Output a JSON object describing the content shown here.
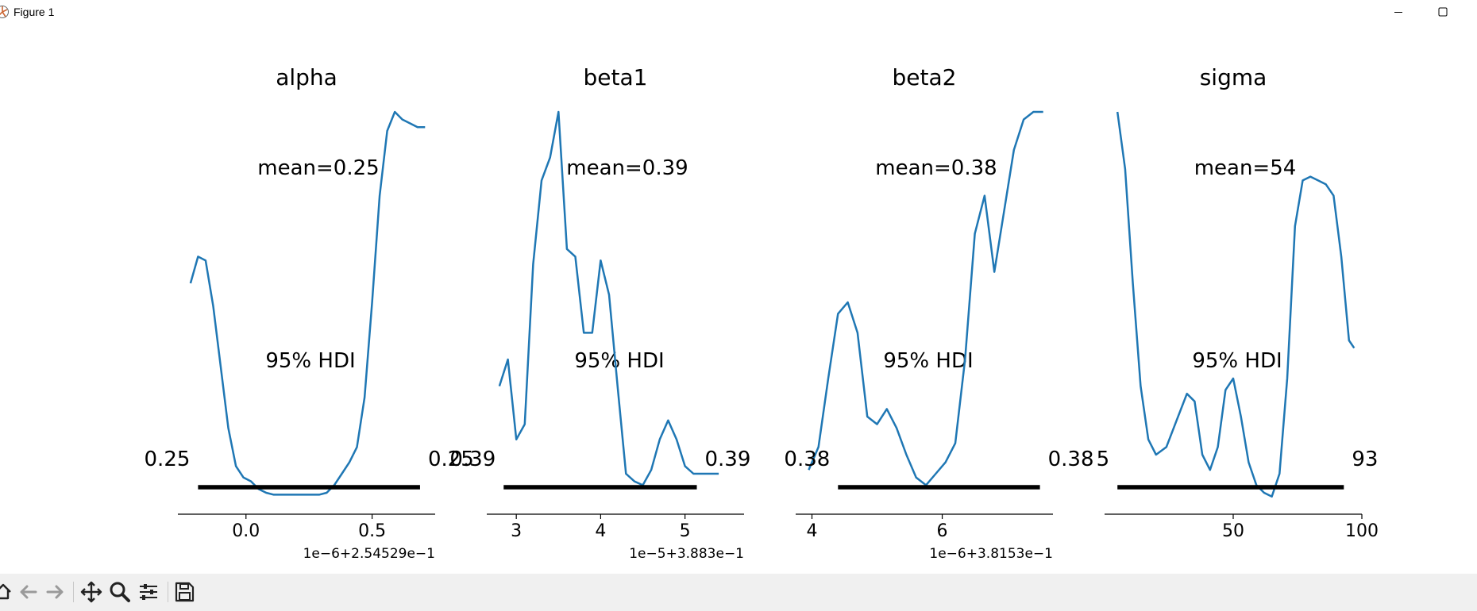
{
  "window": {
    "title": "Figure 1",
    "controls": [
      "minimize",
      "maximize"
    ]
  },
  "toolbar": {
    "buttons": [
      "home-icon",
      "back-icon",
      "forward-icon",
      "pan-icon",
      "zoom-icon",
      "configure-subplots-icon",
      "save-icon"
    ]
  },
  "chart_data": [
    {
      "type": "line",
      "title": "alpha",
      "mean_label": "mean=0.25",
      "hdi_label": "95% HDI",
      "hdi_low_label": "0.25",
      "hdi_high_label": "0.25",
      "hdi": [
        -0.19,
        0.69
      ],
      "xlim": [
        -0.27,
        0.75
      ],
      "xticks": [
        0.0,
        0.5
      ],
      "xtick_labels": [
        "0.0",
        "0.5"
      ],
      "offset_label": "1e−6+2.54529e−1",
      "x": [
        -0.22,
        -0.19,
        -0.16,
        -0.13,
        -0.1,
        -0.07,
        -0.04,
        -0.01,
        0.02,
        0.05,
        0.08,
        0.11,
        0.14,
        0.17,
        0.2,
        0.23,
        0.26,
        0.29,
        0.32,
        0.35,
        0.38,
        0.41,
        0.44,
        0.47,
        0.5,
        0.53,
        0.56,
        0.59,
        0.62,
        0.65,
        0.68,
        0.71
      ],
      "y": [
        0.55,
        0.62,
        0.61,
        0.49,
        0.33,
        0.17,
        0.07,
        0.04,
        0.03,
        0.01,
        0.0,
        -0.005,
        -0.005,
        -0.005,
        -0.005,
        -0.005,
        -0.005,
        -0.005,
        0.0,
        0.02,
        0.05,
        0.08,
        0.12,
        0.25,
        0.5,
        0.78,
        0.95,
        1.0,
        0.98,
        0.97,
        0.96,
        0.96
      ]
    },
    {
      "type": "line",
      "title": "beta1",
      "mean_label": "mean=0.39",
      "hdi_label": "95% HDI",
      "hdi_low_label": "0.39",
      "hdi_high_label": "0.39",
      "hdi": [
        2.85,
        5.14
      ],
      "xlim": [
        2.65,
        5.7
      ],
      "xticks": [
        3,
        4,
        5
      ],
      "xtick_labels": [
        "3",
        "4",
        "5"
      ],
      "offset_label": "1e−5+3.883e−1",
      "x": [
        2.8,
        2.9,
        3.0,
        3.1,
        3.2,
        3.3,
        3.4,
        3.5,
        3.6,
        3.7,
        3.8,
        3.9,
        4.0,
        4.1,
        4.2,
        4.3,
        4.4,
        4.5,
        4.6,
        4.7,
        4.8,
        4.9,
        5.0,
        5.1,
        5.2,
        5.3,
        5.4
      ],
      "y": [
        0.28,
        0.35,
        0.14,
        0.18,
        0.6,
        0.82,
        0.88,
        1.0,
        0.64,
        0.62,
        0.42,
        0.42,
        0.61,
        0.52,
        0.28,
        0.05,
        0.03,
        0.02,
        0.06,
        0.14,
        0.19,
        0.14,
        0.07,
        0.05,
        0.05,
        0.05,
        0.05
      ]
    },
    {
      "type": "line",
      "title": "beta2",
      "mean_label": "mean=0.38",
      "hdi_label": "95% HDI",
      "hdi_low_label": "0.38",
      "hdi_high_label": "0.38",
      "hdi": [
        4.4,
        7.5
      ],
      "xlim": [
        3.75,
        7.7
      ],
      "xticks": [
        4,
        6
      ],
      "xtick_labels": [
        "4",
        "6"
      ],
      "offset_label": "1e−6+3.8153e−1",
      "x": [
        3.95,
        4.1,
        4.25,
        4.4,
        4.55,
        4.7,
        4.85,
        5.0,
        5.15,
        5.3,
        5.45,
        5.6,
        5.75,
        5.9,
        6.05,
        6.2,
        6.35,
        6.5,
        6.65,
        6.8,
        6.95,
        7.1,
        7.25,
        7.4,
        7.55
      ],
      "y": [
        0.06,
        0.12,
        0.3,
        0.47,
        0.5,
        0.42,
        0.2,
        0.18,
        0.22,
        0.17,
        0.1,
        0.04,
        0.02,
        0.05,
        0.08,
        0.13,
        0.35,
        0.68,
        0.78,
        0.58,
        0.74,
        0.9,
        0.98,
        1.0,
        1.0
      ]
    },
    {
      "type": "line",
      "title": "sigma",
      "mean_label": "mean=54",
      "hdi_label": "95% HDI",
      "hdi_low_label": "5",
      "hdi_high_label": "93",
      "hdi": [
        5,
        93
      ],
      "xlim": [
        0,
        100
      ],
      "xticks": [
        50,
        100
      ],
      "xtick_labels": [
        "50",
        "100"
      ],
      "offset_label": "",
      "x": [
        5,
        8,
        11,
        14,
        17,
        20,
        24,
        28,
        32,
        35,
        38,
        41,
        44,
        47,
        50,
        53,
        56,
        59,
        62,
        65,
        68,
        71,
        74,
        77,
        80,
        83,
        86,
        89,
        92,
        95,
        97
      ],
      "y": [
        1.0,
        0.85,
        0.55,
        0.28,
        0.14,
        0.1,
        0.12,
        0.19,
        0.26,
        0.24,
        0.1,
        0.06,
        0.12,
        0.27,
        0.3,
        0.2,
        0.08,
        0.02,
        0.0,
        -0.01,
        0.05,
        0.3,
        0.7,
        0.82,
        0.83,
        0.82,
        0.81,
        0.78,
        0.62,
        0.4,
        0.38
      ]
    }
  ]
}
